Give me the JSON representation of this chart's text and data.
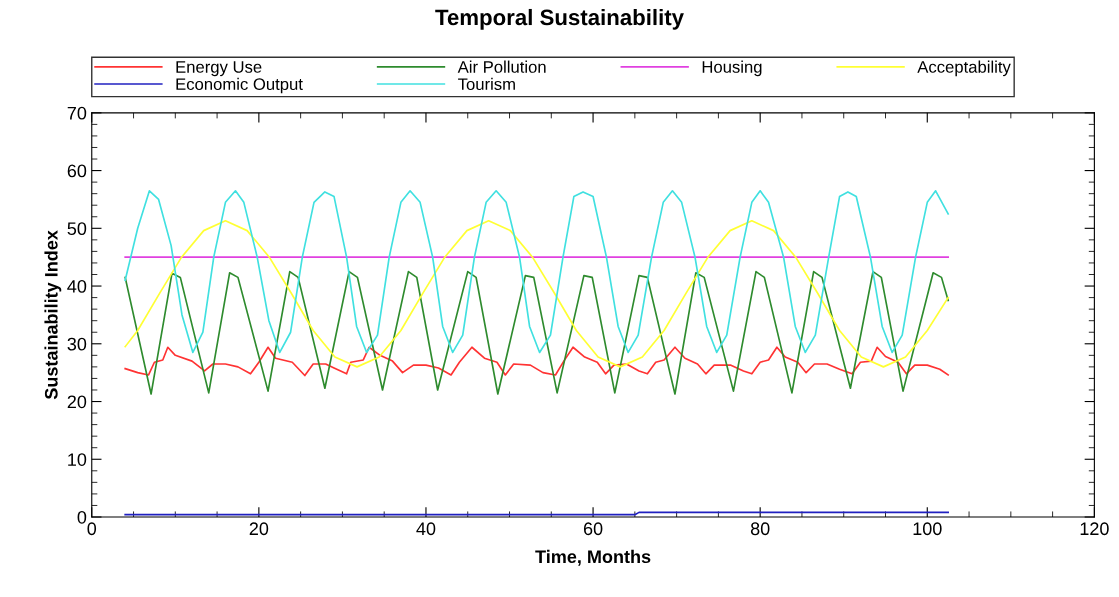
{
  "chart_data": {
    "type": "line",
    "title": "Temporal Sustainability",
    "xlabel": "Time, Months",
    "ylabel": "Sustainability Index",
    "xlim": [
      0,
      120
    ],
    "xticks": [
      0,
      20,
      40,
      60,
      80,
      100,
      120
    ],
    "ylim": [
      0,
      70
    ],
    "yticks": [
      0,
      10,
      20,
      30,
      40,
      50,
      60,
      70
    ],
    "grid": false,
    "legend": "top",
    "marker": "none",
    "line_style": "solid",
    "series": [
      {
        "name": "Energy Use",
        "color": "#ff3333",
        "x": [
          4,
          5.5,
          6.8,
          7.5,
          8.5,
          9.1,
          10,
          12,
          13.5,
          14.5,
          16,
          17.5,
          19,
          20,
          21.1,
          22,
          24,
          25.5,
          26.5,
          28,
          29,
          30.5,
          31,
          32.5,
          33.2,
          34.5,
          36,
          37.2,
          38.5,
          40,
          41.5,
          43,
          44,
          45.5,
          47,
          48.5,
          49.5,
          50.5,
          52.5,
          54,
          55.5,
          56.5,
          57.6,
          59,
          60.5,
          61.5,
          62.5,
          64,
          65.5,
          66.5,
          67.5,
          68.5,
          69.8,
          71,
          72.5,
          73.5,
          74.5,
          76.5,
          78,
          79,
          80,
          81,
          82,
          83,
          84.5,
          85.5,
          86.5,
          88,
          89.5,
          91,
          92,
          93.3,
          94,
          95,
          96.5,
          97.5,
          98.5,
          100,
          101.5,
          102.5
        ],
        "values": [
          25.7,
          25,
          24.6,
          26.8,
          27.2,
          29.4,
          28,
          27,
          25.3,
          26.5,
          26.5,
          26,
          24.8,
          26.8,
          29.4,
          27.5,
          26.8,
          24.5,
          26.5,
          26.5,
          25.8,
          24.8,
          26.8,
          27.2,
          29.4,
          28,
          27,
          25,
          26.3,
          26.3,
          25.8,
          24.6,
          26.8,
          29.4,
          27.5,
          26.8,
          24.6,
          26.5,
          26.3,
          25,
          24.6,
          27,
          29.4,
          27.7,
          26.8,
          24.8,
          26.3,
          26.5,
          25.3,
          24.8,
          26.8,
          27.2,
          29.4,
          27.5,
          26.5,
          24.8,
          26.3,
          26.3,
          25.3,
          24.8,
          26.8,
          27.2,
          29.4,
          27.7,
          26.8,
          25,
          26.5,
          26.5,
          25.6,
          24.8,
          26.8,
          27,
          29.4,
          27.8,
          26.8,
          24.8,
          26.3,
          26.3,
          25.6,
          24.6
        ]
      },
      {
        "name": "Air Pollution",
        "color": "#2e8b2e",
        "x": [
          4,
          7.1,
          9.6,
          10.6,
          14,
          16.5,
          17.5,
          21.1,
          23.7,
          24.7,
          27.9,
          30.8,
          31.8,
          34.8,
          37.9,
          38.9,
          41.4,
          45,
          46,
          48.6,
          51.9,
          52.9,
          55.7,
          58.9,
          59.9,
          62.6,
          65.5,
          66.5,
          69.8,
          72.3,
          73.3,
          76.8,
          79.5,
          80.5,
          83.8,
          86.4,
          87.4,
          90.8,
          93.5,
          94.5,
          97.1,
          100.7,
          101.7,
          102.5
        ],
        "values": [
          41.5,
          21.3,
          42.2,
          41.5,
          21.5,
          42.3,
          41.5,
          21.8,
          42.5,
          41.5,
          22.3,
          42.5,
          41.5,
          22,
          42.5,
          41.5,
          22,
          42.5,
          41.5,
          21.3,
          41.8,
          41.5,
          21.5,
          41.8,
          41.5,
          21.5,
          41.8,
          41.5,
          21.3,
          42.3,
          41.5,
          21.8,
          42.5,
          41.5,
          21.5,
          42.5,
          41.5,
          22.3,
          42.5,
          41.5,
          21.8,
          42.3,
          41.5,
          37.5
        ]
      },
      {
        "name": "Housing",
        "color": "#e040e0",
        "x": [
          4,
          102.5
        ],
        "values": [
          45,
          45
        ]
      },
      {
        "name": "Acceptability",
        "color": "#ffff33",
        "x": [
          4,
          5.5,
          8.1,
          10.75,
          13.4,
          16,
          18.6,
          21.25,
          23.9,
          26.5,
          29.1,
          31.75,
          34.4,
          37,
          39.6,
          42.25,
          44.9,
          47.5,
          50.1,
          52.75,
          55.4,
          58,
          60.6,
          63.25,
          65.9,
          68.5,
          71.1,
          73.75,
          76.4,
          79,
          81.6,
          84.25,
          86.9,
          89.5,
          92.1,
          94.75,
          97.4,
          100,
          102.5
        ],
        "values": [
          29.5,
          32.3,
          38.7,
          45,
          49.6,
          51.3,
          49.6,
          45,
          38.7,
          32.3,
          27.7,
          26,
          27.7,
          32.3,
          38.7,
          45,
          49.6,
          51.3,
          49.6,
          45,
          38.7,
          32.3,
          27.7,
          26,
          27.7,
          32.3,
          38.7,
          45,
          49.6,
          51.3,
          49.6,
          45,
          38.7,
          32.3,
          27.7,
          26,
          27.7,
          32.3,
          38
        ]
      },
      {
        "name": "Economic Output",
        "color": "#2020c0",
        "x": [
          4,
          65,
          65.5,
          102.5
        ],
        "values": [
          0.4,
          0.4,
          0.8,
          0.8
        ]
      },
      {
        "name": "Tourism",
        "color": "#40e0e0",
        "x": [
          4,
          5.5,
          6.9,
          8,
          9.5,
          10.8,
          12.1,
          13.3,
          14.6,
          16,
          17.2,
          18.2,
          19.8,
          21.2,
          22.5,
          23.8,
          25.2,
          26.6,
          27.9,
          29,
          30.5,
          31.7,
          32.9,
          34.2,
          35.6,
          37,
          38.1,
          39.3,
          40.8,
          42,
          43.2,
          44.4,
          45.8,
          47.2,
          48.4,
          49.6,
          51.2,
          52.4,
          53.6,
          54.9,
          56.4,
          57.7,
          58.8,
          60,
          61.6,
          63,
          64.2,
          65.4,
          67,
          68.4,
          69.5,
          70.6,
          72.2,
          73.6,
          74.8,
          76,
          77.6,
          79,
          80,
          81,
          82.8,
          84.2,
          85.4,
          86.6,
          88.2,
          89.5,
          90.5,
          91.5,
          93.2,
          94.6,
          95.8,
          97,
          98.6,
          100,
          101,
          102.5
        ],
        "values": [
          41,
          50,
          56.5,
          55,
          47,
          35,
          28.5,
          32,
          45,
          54.5,
          56.5,
          54.5,
          45,
          34,
          28.5,
          32,
          45,
          54.5,
          56.3,
          55.5,
          45,
          33,
          28.5,
          31.5,
          45,
          54.5,
          56.5,
          54.5,
          45,
          33,
          28.5,
          31.5,
          45,
          54.5,
          56.5,
          54.5,
          45,
          33,
          28.5,
          31.5,
          45,
          55.5,
          56.3,
          55.5,
          45,
          33,
          28.5,
          31.5,
          45,
          54.5,
          56.5,
          54.5,
          45,
          33,
          28.5,
          31.5,
          45,
          54.5,
          56.5,
          54.5,
          45,
          33,
          28.5,
          31.5,
          45,
          55.5,
          56.3,
          55.5,
          45,
          33,
          28.5,
          31.5,
          45,
          54.5,
          56.5,
          52.5
        ]
      }
    ]
  }
}
